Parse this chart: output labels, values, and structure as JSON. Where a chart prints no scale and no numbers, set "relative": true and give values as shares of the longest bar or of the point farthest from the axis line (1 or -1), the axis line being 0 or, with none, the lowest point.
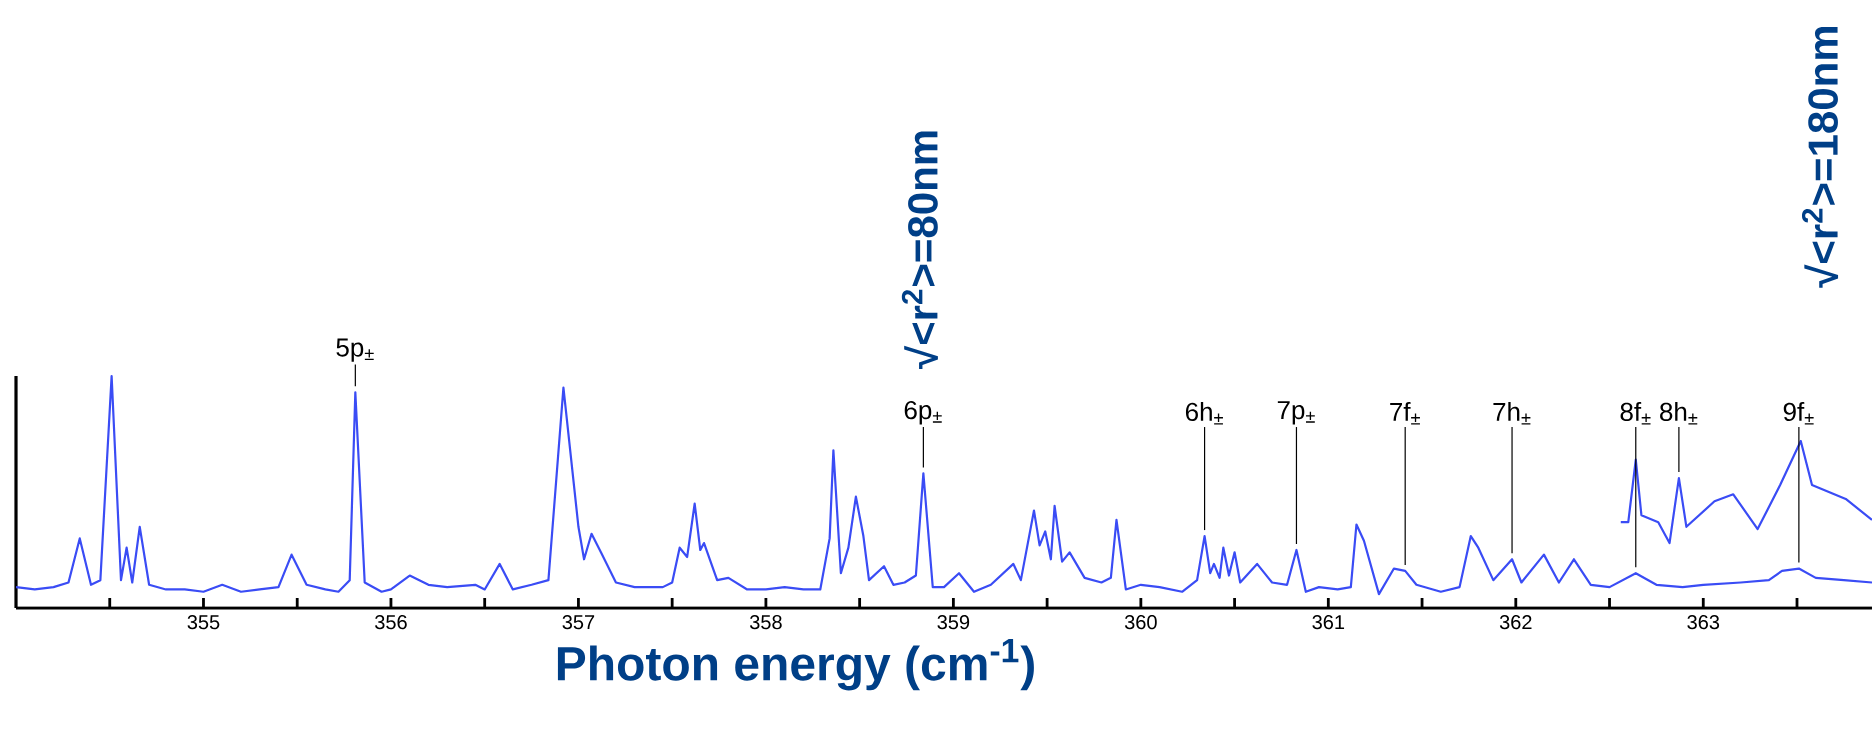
{
  "chart_data": {
    "type": "line",
    "relative": true,
    "xlabel": "Photon energy (cm$^{-1}$)",
    "xlim": [
      354.0,
      363.9
    ],
    "xticks": [
      {
        "value": 354.5,
        "label": null
      },
      355,
      {
        "value": 355.5,
        "label": null
      },
      356,
      {
        "value": 356.5,
        "label": null
      },
      357,
      {
        "value": 357.5,
        "label": null
      },
      358,
      {
        "value": 358.5,
        "label": null
      },
      359,
      {
        "value": 359.5,
        "label": null
      },
      360,
      {
        "value": 360.5,
        "label": null
      },
      361,
      {
        "value": 361.5,
        "label": null
      },
      362,
      {
        "value": 362.5,
        "label": null
      },
      363,
      {
        "value": 363.5,
        "label": null
      }
    ],
    "legend": false,
    "grid": false,
    "marker": "none",
    "line_style": "solid",
    "series": [
      {
        "color": "#3a4cf5",
        "x": [
          354.0,
          354.1,
          354.2,
          354.28,
          354.34,
          354.4,
          354.45,
          354.51,
          354.56,
          354.59,
          354.62,
          354.66,
          354.71,
          354.8,
          354.9,
          355.0,
          355.1,
          355.2,
          355.3,
          355.4,
          355.47,
          355.55,
          355.65,
          355.72,
          355.78,
          355.81,
          355.86,
          355.95,
          356.0,
          356.1,
          356.2,
          356.3,
          356.45,
          356.5,
          356.58,
          356.65,
          356.75,
          356.84,
          356.92,
          357.0,
          357.03,
          357.07,
          357.12,
          357.2,
          357.3,
          357.45,
          357.5,
          357.54,
          357.58,
          357.62,
          357.65,
          357.67,
          357.74,
          357.8,
          357.9,
          358.0,
          358.1,
          358.2,
          358.29,
          358.34,
          358.36,
          358.4,
          358.44,
          358.48,
          358.52,
          358.55,
          358.63,
          358.68,
          358.74,
          358.8,
          358.84,
          358.89,
          358.95,
          359.03,
          359.11,
          359.2,
          359.32,
          359.36,
          359.43,
          359.46,
          359.49,
          359.52,
          359.54,
          359.58,
          359.62,
          359.7,
          359.79,
          359.84,
          359.87,
          359.92,
          360.0,
          360.1,
          360.22,
          360.3,
          360.34,
          360.37,
          360.39,
          360.42,
          360.44,
          360.47,
          360.5,
          360.53,
          360.62,
          360.7,
          360.78,
          360.83,
          360.88,
          360.95,
          361.05,
          361.12,
          361.15,
          361.19,
          361.27,
          361.35,
          361.41,
          361.47,
          361.6,
          361.7,
          361.76,
          361.8,
          361.88,
          361.98,
          362.03,
          362.15,
          362.23,
          362.31,
          362.4,
          362.5,
          362.64,
          362.75,
          362.89,
          363.0,
          363.2,
          363.35,
          363.42,
          363.51,
          363.6,
          363.75,
          363.9
        ],
        "values": [
          0.09,
          0.08,
          0.09,
          0.11,
          0.3,
          0.1,
          0.12,
          1.0,
          0.12,
          0.26,
          0.11,
          0.35,
          0.1,
          0.08,
          0.08,
          0.07,
          0.1,
          0.07,
          0.08,
          0.09,
          0.23,
          0.1,
          0.08,
          0.07,
          0.12,
          0.93,
          0.11,
          0.07,
          0.08,
          0.14,
          0.1,
          0.09,
          0.1,
          0.08,
          0.19,
          0.08,
          0.1,
          0.12,
          0.95,
          0.35,
          0.21,
          0.32,
          0.24,
          0.11,
          0.09,
          0.09,
          0.11,
          0.26,
          0.22,
          0.45,
          0.25,
          0.28,
          0.12,
          0.13,
          0.08,
          0.08,
          0.09,
          0.08,
          0.08,
          0.3,
          0.68,
          0.15,
          0.26,
          0.48,
          0.31,
          0.12,
          0.18,
          0.1,
          0.11,
          0.14,
          0.58,
          0.09,
          0.09,
          0.15,
          0.07,
          0.1,
          0.19,
          0.12,
          0.42,
          0.27,
          0.33,
          0.21,
          0.44,
          0.2,
          0.24,
          0.13,
          0.11,
          0.13,
          0.38,
          0.08,
          0.1,
          0.09,
          0.07,
          0.12,
          0.31,
          0.15,
          0.19,
          0.13,
          0.26,
          0.14,
          0.24,
          0.11,
          0.19,
          0.11,
          0.1,
          0.25,
          0.07,
          0.09,
          0.08,
          0.09,
          0.36,
          0.29,
          0.06,
          0.17,
          0.16,
          0.1,
          0.07,
          0.09,
          0.31,
          0.26,
          0.12,
          0.21,
          0.11,
          0.23,
          0.11,
          0.21,
          0.1,
          0.09,
          0.15,
          0.1,
          0.09,
          0.1,
          0.11,
          0.12,
          0.16,
          0.17,
          0.13,
          0.12,
          0.11
        ]
      },
      {
        "color": "#3a4cf5",
        "x": [
          362.56,
          362.6,
          362.64,
          362.67,
          362.76,
          362.82,
          362.87,
          362.91,
          363.06,
          363.16,
          363.29,
          363.41,
          363.52,
          363.58,
          363.76,
          363.9
        ],
        "values": [
          0.37,
          0.37,
          0.64,
          0.4,
          0.37,
          0.28,
          0.56,
          0.35,
          0.46,
          0.49,
          0.34,
          0.53,
          0.72,
          0.53,
          0.47,
          0.38
        ]
      }
    ],
    "annotations": [
      {
        "text": "5p$_{±}$",
        "x": 355.81,
        "y": 0.93
      },
      {
        "text": "6p$_{±}$",
        "x": 358.84,
        "y": 0.58
      },
      {
        "text": "6h$_{±}$",
        "x": 360.34,
        "y": 0.31
      },
      {
        "text": "7p$_{±}$",
        "x": 360.83,
        "y": 0.25
      },
      {
        "text": "7f$_{±}$",
        "x": 361.41,
        "y": 0.16
      },
      {
        "text": "7h$_{±}$",
        "x": 361.98,
        "y": 0.21
      },
      {
        "text": "8f$_{±}$",
        "x": 362.64,
        "y": 0.15
      },
      {
        "text": "8h$_{±}$",
        "x": 362.87,
        "y": 0.56
      },
      {
        "text": "9f$_{±}$",
        "x": 363.51,
        "y": 0.17
      },
      "√<r$^{2}$>=80nm",
      "√<r$^{2}$>=180nm"
    ]
  }
}
